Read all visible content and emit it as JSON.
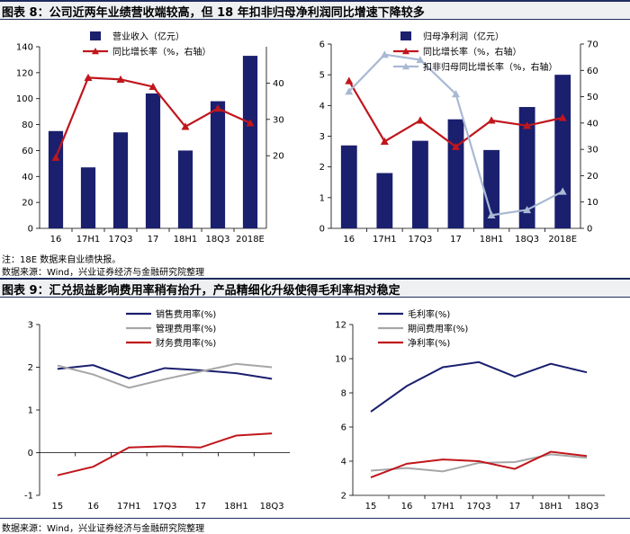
{
  "fig8": {
    "title": "图表 8：公司近两年业绩营收端较高，但 18 年扣非归母净利润同比增速下降较多",
    "note": "注：18E 数据来自业绩快报。",
    "source": "数据来源：Wind，兴业证券经济与金融研究院整理"
  },
  "fig9": {
    "title": "图表 9：汇兑损益影响费用率稍有抬升，产品精细化升级使得毛利率相对稳定",
    "source": "数据来源：Wind，兴业证券经济与金融研究院整理"
  },
  "colors": {
    "navy": "#1a1f6e",
    "red": "#c0161c",
    "lightblue": "#a9b9d3",
    "gray": "#a6a6a6"
  },
  "chart_data": [
    {
      "id": "c1",
      "type": "bar+line",
      "categories": [
        "16",
        "17H1",
        "17Q3",
        "17",
        "18H1",
        "18Q3",
        "2018E"
      ],
      "series": [
        {
          "name": "营业收入（亿元）",
          "kind": "bar",
          "axis": "left",
          "color": "#1a1f6e",
          "values": [
            75,
            47,
            74,
            104,
            60,
            98,
            133
          ]
        },
        {
          "name": "同比增长率（%，右轴）",
          "kind": "line",
          "marker": "triangle",
          "axis": "right",
          "color": "#c0161c",
          "values": [
            19.5,
            41.5,
            41,
            39,
            28,
            33,
            29
          ]
        }
      ],
      "left_axis": {
        "min": 0,
        "max": 140,
        "ticks": [
          0,
          20,
          40,
          60,
          80,
          100,
          120,
          140
        ]
      },
      "right_axis": {
        "min": 0,
        "max": 50,
        "ticks": [
          20,
          30,
          40
        ]
      },
      "legend": "top-center"
    },
    {
      "id": "c2",
      "type": "bar+line",
      "categories": [
        "16",
        "17H1",
        "17Q3",
        "17",
        "18H1",
        "18Q3",
        "2018E"
      ],
      "series": [
        {
          "name": "归母净利润（亿元）",
          "kind": "bar",
          "axis": "left",
          "color": "#1a1f6e",
          "values": [
            2.7,
            1.8,
            2.85,
            3.55,
            2.55,
            3.95,
            5.0
          ]
        },
        {
          "name": "同比增长率（%，右轴）",
          "kind": "line",
          "marker": "triangle",
          "axis": "right",
          "color": "#c0161c",
          "values": [
            56,
            33,
            41,
            31,
            41,
            39,
            42
          ]
        },
        {
          "name": "扣非归母同比增长率（%，右轴）",
          "kind": "line",
          "marker": "triangle",
          "axis": "right",
          "color": "#a9b9d3",
          "values": [
            52,
            66,
            64,
            51,
            5,
            7,
            14
          ]
        }
      ],
      "left_axis": {
        "min": 0,
        "max": 6,
        "ticks": [
          0,
          1,
          2,
          3,
          4,
          5,
          6
        ]
      },
      "right_axis": {
        "min": 0,
        "max": 70,
        "ticks": [
          0,
          10,
          20,
          30,
          40,
          50,
          60,
          70
        ]
      },
      "legend": "top-center"
    },
    {
      "id": "c3",
      "type": "line",
      "categories": [
        "15",
        "16",
        "17H1",
        "17Q3",
        "17",
        "18H1",
        "18Q3"
      ],
      "series": [
        {
          "name": "销售费用率(%)",
          "color": "#1a1f6e",
          "values": [
            1.96,
            2.05,
            1.74,
            1.98,
            1.93,
            1.86,
            1.73
          ]
        },
        {
          "name": "管理费用率(%)",
          "color": "#a6a6a6",
          "values": [
            2.04,
            1.83,
            1.52,
            1.72,
            1.9,
            2.08,
            2.0
          ]
        },
        {
          "name": "财务费用率(%)",
          "color": "#c0161c",
          "values": [
            -0.53,
            -0.33,
            0.12,
            0.15,
            0.12,
            0.4,
            0.45
          ]
        }
      ],
      "left_axis": {
        "min": -1,
        "max": 3,
        "ticks": [
          -1,
          0,
          1,
          2,
          3
        ]
      },
      "legend": "top-center"
    },
    {
      "id": "c4",
      "type": "line",
      "categories": [
        "15",
        "16",
        "17H1",
        "17Q3",
        "17",
        "18H1",
        "18Q3"
      ],
      "series": [
        {
          "name": "毛利率(%)",
          "color": "#1a1f6e",
          "values": [
            6.9,
            8.4,
            9.5,
            9.8,
            8.95,
            9.7,
            9.2
          ]
        },
        {
          "name": "期间费用率(%)",
          "color": "#a6a6a6",
          "values": [
            3.45,
            3.6,
            3.4,
            3.9,
            3.95,
            4.4,
            4.2
          ]
        },
        {
          "name": "净利率(%)",
          "color": "#c0161c",
          "values": [
            3.05,
            3.85,
            4.1,
            4.0,
            3.55,
            4.55,
            4.3
          ]
        }
      ],
      "left_axis": {
        "min": 2,
        "max": 12,
        "ticks": [
          2,
          4,
          6,
          8,
          10,
          12
        ]
      },
      "legend": "top-center"
    }
  ]
}
